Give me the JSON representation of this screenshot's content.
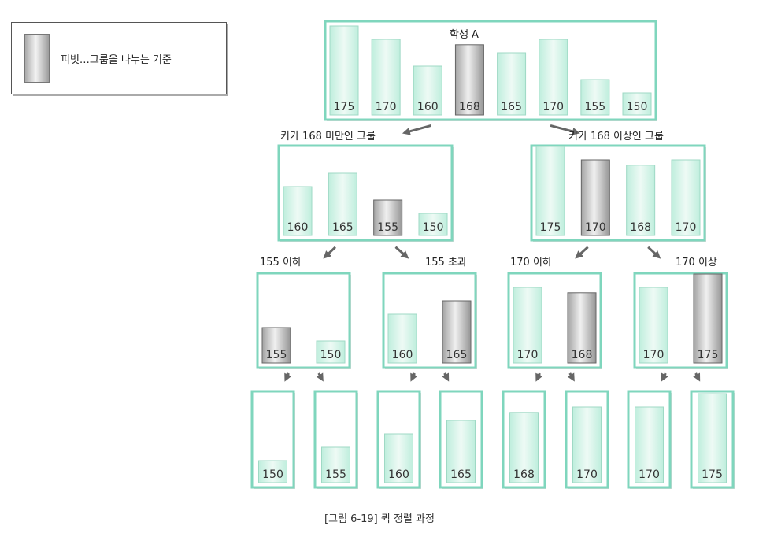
{
  "legend": {
    "text": "피벗…그룹을 나누는 기준"
  },
  "labels": {
    "root": "학생 A",
    "lt168": "키가 168 미만인 그룹",
    "ge168": "키가 168 이상인 그룹",
    "le155": "155 이하",
    "gt155": "155 초과",
    "le170": "170 이하",
    "ge170": "170 이상"
  },
  "caption": "[그림 6-19] 퀵 정렬 과정",
  "colors": {
    "frame": "#7fd6bd",
    "bar": "#dff5ee",
    "pivot": "#c9c9c9",
    "arrow": "#666666"
  },
  "levels": [
    {
      "groups": [
        {
          "values": [
            175,
            170,
            160,
            168,
            165,
            170,
            155,
            150
          ],
          "pivot": 3
        }
      ]
    },
    {
      "groups": [
        {
          "values": [
            160,
            165,
            155,
            150
          ],
          "pivot": 2
        },
        {
          "values": [
            175,
            170,
            168,
            170
          ],
          "pivot": 1
        }
      ]
    },
    {
      "groups": [
        {
          "values": [
            155,
            150
          ],
          "pivot": 0
        },
        {
          "values": [
            160,
            165
          ],
          "pivot": 1
        },
        {
          "values": [
            170,
            168
          ],
          "pivot": 1
        },
        {
          "values": [
            170,
            175
          ],
          "pivot": 1
        }
      ]
    },
    {
      "groups": [
        {
          "values": [
            150
          ]
        },
        {
          "values": [
            155
          ]
        },
        {
          "values": [
            160
          ]
        },
        {
          "values": [
            165
          ]
        },
        {
          "values": [
            168
          ]
        },
        {
          "values": [
            170
          ]
        },
        {
          "values": [
            170
          ]
        },
        {
          "values": [
            175
          ]
        }
      ]
    }
  ]
}
